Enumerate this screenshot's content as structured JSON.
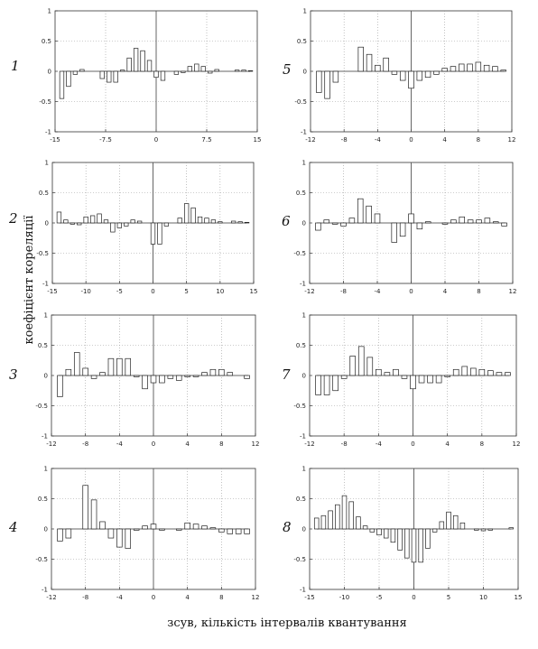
{
  "figure": {
    "ylabel": "коефіцієнт кореляції",
    "xlabel": "зсув, кількість інтервалів квантування"
  },
  "chart_data": [
    {
      "type": "bar",
      "panel_label": "1",
      "xlim": [
        -15,
        15
      ],
      "ylim": [
        -1,
        1
      ],
      "xticks": [
        "-15",
        "-7.5",
        "0",
        "7.5",
        "15"
      ],
      "yticks": [
        "1",
        "0.5",
        "0",
        "-0.5",
        "-1"
      ],
      "grid": true,
      "x": [
        -14,
        -13,
        -12,
        -11,
        -10,
        -9,
        -8,
        -7,
        -6,
        -5,
        -4,
        -3,
        -2,
        -1,
        0,
        1,
        2,
        3,
        4,
        5,
        6,
        7,
        8,
        9,
        10,
        11,
        12,
        13,
        14
      ],
      "values": [
        -0.45,
        -0.25,
        -0.05,
        0.03,
        0,
        0,
        -0.12,
        -0.18,
        -0.18,
        0.02,
        0.22,
        0.38,
        0.34,
        0.18,
        -0.1,
        -0.15,
        0,
        -0.05,
        -0.02,
        0.08,
        0.12,
        0.08,
        -0.03,
        0.03,
        0,
        0,
        0.02,
        0.02,
        0.01
      ]
    },
    {
      "type": "bar",
      "panel_label": "5",
      "xlim": [
        -12,
        12
      ],
      "ylim": [
        -1,
        1
      ],
      "xticks": [
        "-12",
        "-8",
        "-4",
        "0",
        "4",
        "8",
        "12"
      ],
      "yticks": [
        "1",
        "0.5",
        "0",
        "-0.5",
        "-1"
      ],
      "grid": true,
      "x": [
        -11,
        -10,
        -9,
        -8,
        -7,
        -6,
        -5,
        -4,
        -3,
        -2,
        -1,
        0,
        1,
        2,
        3,
        4,
        5,
        6,
        7,
        8,
        9,
        10,
        11
      ],
      "values": [
        -0.35,
        -0.45,
        -0.18,
        0,
        0,
        0.4,
        0.28,
        0.1,
        0.22,
        -0.05,
        -0.15,
        -0.28,
        -0.15,
        -0.1,
        -0.05,
        0.05,
        0.08,
        0.12,
        0.12,
        0.15,
        0.1,
        0.08,
        0.02
      ]
    },
    {
      "type": "bar",
      "panel_label": "2",
      "xlim": [
        -15,
        15
      ],
      "ylim": [
        -1,
        1
      ],
      "xticks": [
        "-15",
        "-10",
        "-5",
        "0",
        "5",
        "10",
        "15"
      ],
      "yticks": [
        "1",
        "0.5",
        "0",
        "-0.5",
        "-1"
      ],
      "grid": true,
      "x": [
        -14,
        -13,
        -12,
        -11,
        -10,
        -9,
        -8,
        -7,
        -6,
        -5,
        -4,
        -3,
        -2,
        -1,
        0,
        1,
        2,
        3,
        4,
        5,
        6,
        7,
        8,
        9,
        10,
        11,
        12,
        13,
        14
      ],
      "values": [
        0.18,
        0.05,
        -0.02,
        -0.03,
        0.1,
        0.12,
        0.15,
        0.05,
        -0.15,
        -0.08,
        -0.05,
        0.05,
        0.03,
        0,
        -0.35,
        -0.35,
        -0.05,
        0,
        0.08,
        0.32,
        0.25,
        0.1,
        0.08,
        0.05,
        0.02,
        0,
        0.03,
        0.02,
        0.01
      ]
    },
    {
      "type": "bar",
      "panel_label": "6",
      "xlim": [
        -12,
        12
      ],
      "ylim": [
        -1,
        1
      ],
      "xticks": [
        "-12",
        "-8",
        "-4",
        "0",
        "4",
        "8",
        "12"
      ],
      "yticks": [
        "1",
        "0.5",
        "0",
        "-0.5",
        "-1"
      ],
      "grid": true,
      "x": [
        -11,
        -10,
        -9,
        -8,
        -7,
        -6,
        -5,
        -4,
        -3,
        -2,
        -1,
        0,
        1,
        2,
        3,
        4,
        5,
        6,
        7,
        8,
        9,
        10,
        11
      ],
      "values": [
        -0.12,
        0.05,
        -0.02,
        -0.05,
        0.08,
        0.4,
        0.28,
        0.15,
        0,
        -0.32,
        -0.22,
        0.15,
        -0.1,
        0.02,
        0,
        -0.02,
        0.05,
        0.1,
        0.05,
        0.05,
        0.08,
        0.02,
        -0.05
      ]
    },
    {
      "type": "bar",
      "panel_label": "3",
      "xlim": [
        -12,
        12
      ],
      "ylim": [
        -1,
        1
      ],
      "xticks": [
        "-12",
        "-8",
        "-4",
        "0",
        "4",
        "8",
        "12"
      ],
      "yticks": [
        "1",
        "0.5",
        "0",
        "-0.5",
        "-1"
      ],
      "grid": true,
      "x": [
        -11,
        -10,
        -9,
        -8,
        -7,
        -6,
        -5,
        -4,
        -3,
        -2,
        -1,
        0,
        1,
        2,
        3,
        4,
        5,
        6,
        7,
        8,
        9,
        10,
        11
      ],
      "values": [
        -0.35,
        0.1,
        0.38,
        0.12,
        -0.05,
        0.05,
        0.28,
        0.28,
        0.28,
        -0.02,
        -0.22,
        -0.12,
        -0.12,
        -0.05,
        -0.08,
        -0.02,
        -0.02,
        0.05,
        0.1,
        0.1,
        0.05,
        0,
        -0.05
      ]
    },
    {
      "type": "bar",
      "panel_label": "7",
      "xlim": [
        -12,
        12
      ],
      "ylim": [
        -1,
        1
      ],
      "xticks": [
        "-12",
        "-8",
        "-4",
        "0",
        "4",
        "8",
        "12"
      ],
      "yticks": [
        "1",
        "0.5",
        "0",
        "-0.5",
        "-1"
      ],
      "grid": true,
      "x": [
        -11,
        -10,
        -9,
        -8,
        -7,
        -6,
        -5,
        -4,
        -3,
        -2,
        -1,
        0,
        1,
        2,
        3,
        4,
        5,
        6,
        7,
        8,
        9,
        10,
        11
      ],
      "values": [
        -0.32,
        -0.32,
        -0.25,
        -0.05,
        0.32,
        0.48,
        0.3,
        0.1,
        0.05,
        0.1,
        -0.05,
        -0.22,
        -0.12,
        -0.12,
        -0.12,
        -0.02,
        0.1,
        0.15,
        0.12,
        0.1,
        0.08,
        0.05,
        0.05
      ]
    },
    {
      "type": "bar",
      "panel_label": "4",
      "xlim": [
        -12,
        12
      ],
      "ylim": [
        -1,
        1
      ],
      "xticks": [
        "-12",
        "-8",
        "-4",
        "0",
        "4",
        "8",
        "12"
      ],
      "yticks": [
        "1",
        "0.5",
        "0",
        "-0.5",
        "-1"
      ],
      "grid": true,
      "x": [
        -11,
        -10,
        -9,
        -8,
        -7,
        -6,
        -5,
        -4,
        -3,
        -2,
        -1,
        0,
        1,
        2,
        3,
        4,
        5,
        6,
        7,
        8,
        9,
        10,
        11
      ],
      "values": [
        -0.2,
        -0.15,
        0,
        0.72,
        0.48,
        0.12,
        -0.15,
        -0.3,
        -0.32,
        -0.02,
        0.05,
        0.08,
        -0.02,
        0,
        -0.02,
        0.1,
        0.08,
        0.05,
        0.02,
        -0.05,
        -0.08,
        -0.08,
        -0.08
      ]
    },
    {
      "type": "bar",
      "panel_label": "8",
      "xlim": [
        -15,
        15
      ],
      "ylim": [
        -1,
        1
      ],
      "xticks": [
        "-15",
        "-10",
        "-5",
        "0",
        "5",
        "10",
        "15"
      ],
      "yticks": [
        "1",
        "0.5",
        "0",
        "-0.5",
        "-1"
      ],
      "grid": true,
      "x": [
        -14,
        -13,
        -12,
        -11,
        -10,
        -9,
        -8,
        -7,
        -6,
        -5,
        -4,
        -3,
        -2,
        -1,
        0,
        1,
        2,
        3,
        4,
        5,
        6,
        7,
        8,
        9,
        10,
        11,
        12,
        13,
        14
      ],
      "values": [
        0.18,
        0.22,
        0.3,
        0.4,
        0.55,
        0.45,
        0.2,
        0.05,
        -0.05,
        -0.1,
        -0.15,
        -0.22,
        -0.35,
        -0.48,
        -0.55,
        -0.55,
        -0.32,
        -0.05,
        0.12,
        0.28,
        0.22,
        0.1,
        0,
        -0.02,
        -0.03,
        -0.02,
        0,
        0,
        0.02
      ]
    }
  ]
}
